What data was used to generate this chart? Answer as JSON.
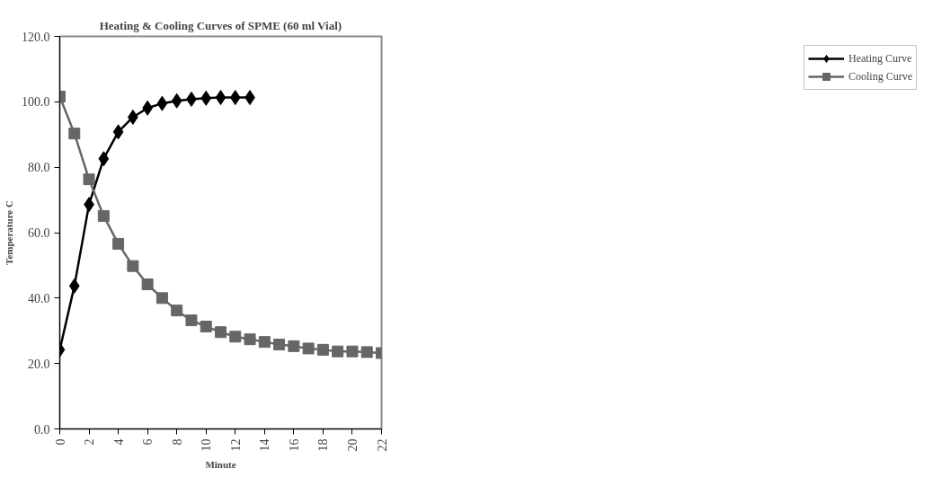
{
  "chart_data": {
    "type": "line",
    "title": "Heating & Cooling Curves of SPME (60 ml Vial)",
    "xlabel": "Minute",
    "ylabel": "Temperature C",
    "x": [
      0,
      1,
      2,
      3,
      4,
      5,
      6,
      7,
      8,
      9,
      10,
      11,
      12,
      13,
      14,
      15,
      16,
      17,
      18,
      19,
      20,
      21,
      22
    ],
    "series": [
      {
        "name": "Heating Curve",
        "color": "#000000",
        "marker": "diamond",
        "x": [
          0,
          1,
          2,
          3,
          4,
          5,
          6,
          7,
          8,
          9,
          10,
          11,
          12,
          13
        ],
        "values": [
          24.2,
          43.7,
          68.6,
          82.6,
          90.8,
          95.3,
          98.1,
          99.5,
          100.3,
          100.8,
          101.1,
          101.3,
          101.3,
          101.3
        ]
      },
      {
        "name": "Cooling Curve",
        "color": "#666666",
        "marker": "square",
        "values": [
          101.6,
          90.3,
          76.3,
          65.1,
          56.6,
          49.8,
          44.2,
          40.0,
          36.2,
          33.2,
          31.3,
          29.6,
          28.2,
          27.4,
          26.6,
          25.8,
          25.3,
          24.6,
          24.2,
          23.7,
          23.7,
          23.5,
          23.2
        ]
      }
    ],
    "xlim": [
      0,
      22
    ],
    "xticks": [
      0,
      2,
      4,
      6,
      8,
      10,
      12,
      14,
      16,
      18,
      20,
      22
    ],
    "ylim": [
      0,
      120
    ],
    "yticks": [
      {
        "value": 0,
        "label": "0.0"
      },
      {
        "value": 20,
        "label": "20.0"
      },
      {
        "value": 40,
        "label": "40.0"
      },
      {
        "value": 60,
        "label": "60.0"
      },
      {
        "value": 80,
        "label": "80.0"
      },
      {
        "value": 100,
        "label": "100.0"
      },
      {
        "value": 120,
        "label": "120.0"
      }
    ],
    "grid": false,
    "legend": "right"
  }
}
